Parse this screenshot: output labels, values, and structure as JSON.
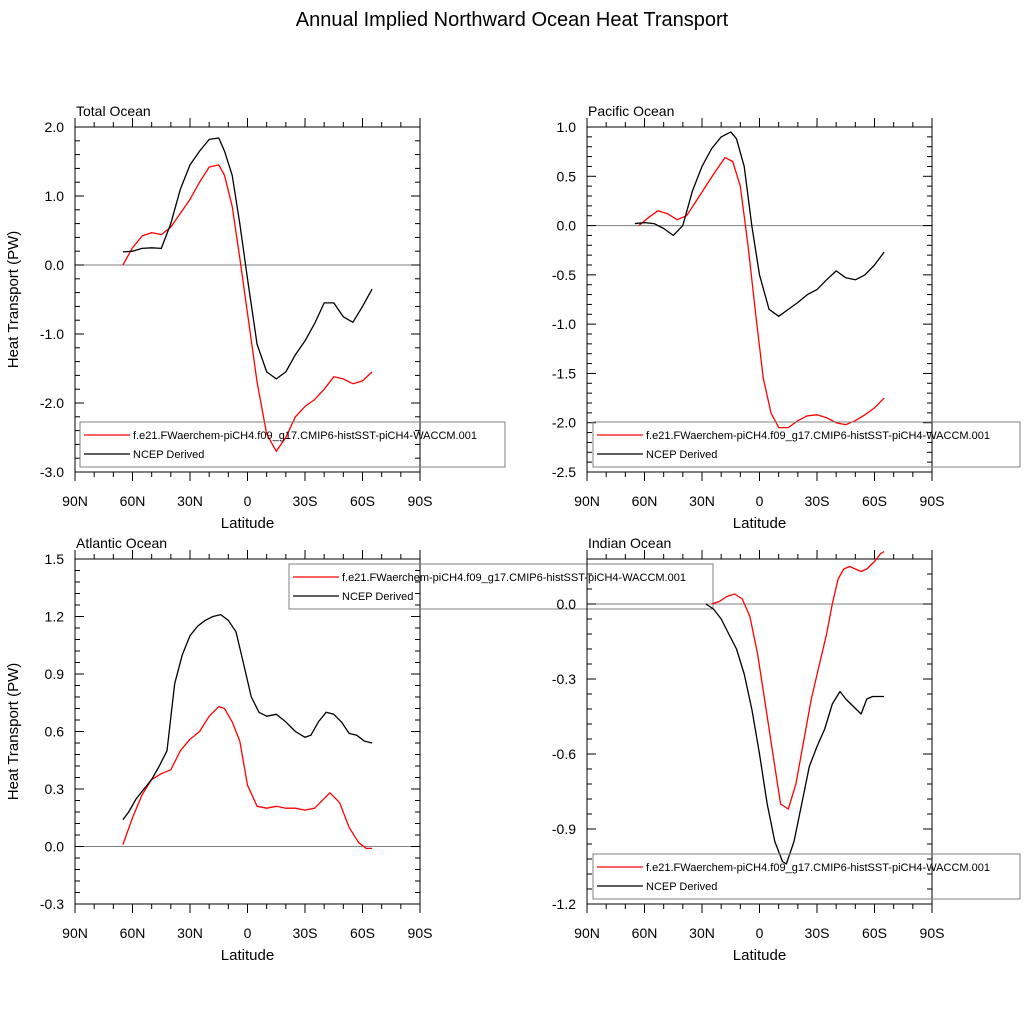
{
  "figure_title": "Annual Implied Northward Ocean Heat Transport",
  "colors": {
    "model": "#ff0000",
    "obs": "#000000",
    "zero_line": "#808080"
  },
  "chart_data": [
    {
      "type": "line",
      "title": "Total Ocean",
      "xlabel": "Latitude",
      "ylabel": "Heat Transport (PW)",
      "xlim": [
        90,
        -90
      ],
      "ylim": [
        -3.0,
        2.0
      ],
      "x_ticks": [
        90,
        60,
        30,
        0,
        -30,
        -60,
        -90
      ],
      "x_tick_labels": [
        "90N",
        "60N",
        "30N",
        "0",
        "30S",
        "60S",
        "90S"
      ],
      "y_ticks": [
        -3.0,
        -2.0,
        -1.0,
        0.0,
        1.0,
        2.0
      ],
      "y_tick_labels": [
        "-3.0",
        "-2.0",
        "-1.0",
        "0.0",
        "1.0",
        "2.0"
      ],
      "legend_position": "lower-right",
      "series": [
        {
          "name": "f.e21.FWaerchem-piCH4.f09_g17.CMIP6-histSST-piCH4-WACCM.001",
          "color": "#ff0000",
          "x": [
            65,
            60,
            55,
            50,
            45,
            40,
            35,
            30,
            25,
            20,
            15,
            12,
            8,
            4,
            0,
            -5,
            -10,
            -15,
            -20,
            -25,
            -30,
            -35,
            -40,
            -45,
            -50,
            -55,
            -60,
            -65
          ],
          "y": [
            0.0,
            0.25,
            0.42,
            0.47,
            0.44,
            0.55,
            0.75,
            0.95,
            1.2,
            1.42,
            1.45,
            1.3,
            0.85,
            0.1,
            -0.7,
            -1.7,
            -2.45,
            -2.7,
            -2.5,
            -2.2,
            -2.05,
            -1.95,
            -1.8,
            -1.62,
            -1.65,
            -1.72,
            -1.68,
            -1.55
          ]
        },
        {
          "name": "NCEP Derived",
          "color": "#000000",
          "x": [
            65,
            60,
            55,
            50,
            45,
            40,
            35,
            30,
            25,
            20,
            15,
            12,
            8,
            4,
            0,
            -5,
            -10,
            -15,
            -20,
            -25,
            -30,
            -35,
            -40,
            -45,
            -50,
            -55,
            -60,
            -65
          ],
          "y": [
            0.19,
            0.2,
            0.24,
            0.25,
            0.24,
            0.6,
            1.1,
            1.45,
            1.65,
            1.82,
            1.84,
            1.65,
            1.3,
            0.6,
            -0.2,
            -1.15,
            -1.55,
            -1.65,
            -1.55,
            -1.3,
            -1.1,
            -0.85,
            -0.55,
            -0.55,
            -0.75,
            -0.83,
            -0.6,
            -0.35
          ]
        }
      ]
    },
    {
      "type": "line",
      "title": "Pacific Ocean",
      "xlabel": "Latitude",
      "ylabel": "",
      "xlim": [
        90,
        -90
      ],
      "ylim": [
        -2.5,
        1.0
      ],
      "x_ticks": [
        90,
        60,
        30,
        0,
        -30,
        -60,
        -90
      ],
      "x_tick_labels": [
        "90N",
        "60N",
        "30N",
        "0",
        "30S",
        "60S",
        "90S"
      ],
      "y_ticks": [
        -2.5,
        -2.0,
        -1.5,
        -1.0,
        -0.5,
        0.0,
        0.5,
        1.0
      ],
      "y_tick_labels": [
        "-2.5",
        "-2.0",
        "-1.5",
        "-1.0",
        "-0.5",
        "0.0",
        "0.5",
        "1.0"
      ],
      "legend_position": "lower-right",
      "series": [
        {
          "name": "f.e21.FWaerchem-piCH4.f09_g17.CMIP6-histSST-piCH4-WACCM.001",
          "color": "#ff0000",
          "x": [
            63,
            58,
            53,
            48,
            43,
            38,
            33,
            28,
            23,
            18,
            14,
            10,
            6,
            2,
            -2,
            -6,
            -10,
            -15,
            -20,
            -25,
            -30,
            -35,
            -40,
            -45,
            -50,
            -55,
            -60,
            -65
          ],
          "y": [
            0.0,
            0.08,
            0.15,
            0.12,
            0.06,
            0.1,
            0.25,
            0.4,
            0.55,
            0.69,
            0.65,
            0.4,
            -0.2,
            -0.9,
            -1.55,
            -1.9,
            -2.05,
            -2.05,
            -1.98,
            -1.93,
            -1.92,
            -1.95,
            -2.0,
            -2.02,
            -1.98,
            -1.92,
            -1.85,
            -1.75
          ]
        },
        {
          "name": "NCEP Derived",
          "color": "#000000",
          "x": [
            65,
            60,
            55,
            50,
            45,
            40,
            35,
            30,
            25,
            20,
            15,
            12,
            8,
            4,
            0,
            -5,
            -10,
            -15,
            -20,
            -25,
            -30,
            -35,
            -40,
            -45,
            -50,
            -55,
            -60,
            -65
          ],
          "y": [
            0.02,
            0.03,
            0.02,
            -0.03,
            -0.1,
            0.0,
            0.35,
            0.6,
            0.78,
            0.9,
            0.95,
            0.88,
            0.6,
            0.0,
            -0.5,
            -0.85,
            -0.92,
            -0.85,
            -0.78,
            -0.7,
            -0.65,
            -0.55,
            -0.46,
            -0.53,
            -0.55,
            -0.5,
            -0.4,
            -0.27
          ]
        }
      ]
    },
    {
      "type": "line",
      "title": "Atlantic Ocean",
      "xlabel": "Latitude",
      "ylabel": "Heat Transport (PW)",
      "xlim": [
        90,
        -90
      ],
      "ylim": [
        -0.3,
        1.5
      ],
      "x_ticks": [
        90,
        60,
        30,
        0,
        -30,
        -60,
        -90
      ],
      "x_tick_labels": [
        "90N",
        "60N",
        "30N",
        "0",
        "30S",
        "60S",
        "90S"
      ],
      "y_ticks": [
        -0.3,
        0.0,
        0.3,
        0.6,
        0.9,
        1.2,
        1.5
      ],
      "y_tick_labels": [
        "-0.3",
        "0.0",
        "0.3",
        "0.6",
        "0.9",
        "1.2",
        "1.5"
      ],
      "legend_position": "top-center",
      "series": [
        {
          "name": "f.e21.FWaerchem-piCH4.f09_g17.CMIP6-histSST-piCH4-WACCM.001",
          "color": "#ff0000",
          "x": [
            65,
            60,
            55,
            50,
            45,
            40,
            35,
            30,
            25,
            20,
            15,
            12,
            8,
            4,
            0,
            -5,
            -10,
            -15,
            -20,
            -25,
            -30,
            -35,
            -40,
            -43,
            -48,
            -53,
            -58,
            -62,
            -65
          ],
          "y": [
            0.01,
            0.15,
            0.27,
            0.35,
            0.38,
            0.4,
            0.5,
            0.56,
            0.6,
            0.68,
            0.73,
            0.72,
            0.65,
            0.55,
            0.32,
            0.21,
            0.2,
            0.21,
            0.2,
            0.2,
            0.19,
            0.2,
            0.25,
            0.28,
            0.23,
            0.1,
            0.02,
            -0.01,
            -0.01
          ]
        },
        {
          "name": "NCEP Derived",
          "color": "#000000",
          "x": [
            65,
            62,
            58,
            54,
            50,
            46,
            42,
            38,
            34,
            30,
            26,
            22,
            18,
            14,
            10,
            6,
            2,
            -2,
            -6,
            -10,
            -15,
            -20,
            -25,
            -30,
            -33,
            -37,
            -41,
            -45,
            -49,
            -53,
            -57,
            -61,
            -65
          ],
          "y": [
            0.14,
            0.18,
            0.25,
            0.3,
            0.35,
            0.42,
            0.5,
            0.85,
            1.0,
            1.1,
            1.15,
            1.18,
            1.2,
            1.21,
            1.18,
            1.12,
            0.95,
            0.78,
            0.7,
            0.68,
            0.69,
            0.65,
            0.6,
            0.57,
            0.58,
            0.65,
            0.7,
            0.69,
            0.65,
            0.59,
            0.58,
            0.55,
            0.54
          ]
        }
      ]
    },
    {
      "type": "line",
      "title": "Indian Ocean",
      "xlabel": "Latitude",
      "ylabel": "",
      "xlim": [
        90,
        -90
      ],
      "ylim": [
        -1.2,
        0.18
      ],
      "x_ticks": [
        90,
        60,
        30,
        0,
        -30,
        -60,
        -90
      ],
      "x_tick_labels": [
        "90N",
        "60N",
        "30N",
        "0",
        "30S",
        "60S",
        "90S"
      ],
      "y_ticks": [
        -1.2,
        -0.9,
        -0.6,
        -0.3,
        0.0
      ],
      "y_tick_labels": [
        "-1.2",
        "-0.9",
        "-0.6",
        "-0.3",
        "0.0"
      ],
      "legend_position": "lower-right",
      "series": [
        {
          "name": "f.e21.FWaerchem-piCH4.f09_g17.CMIP6-histSST-piCH4-WACCM.001",
          "color": "#ff0000",
          "x": [
            25,
            21,
            17,
            13,
            9,
            5,
            1,
            -3,
            -7,
            -11,
            -15,
            -19,
            -23,
            -27,
            -31,
            -35,
            -38,
            -41,
            -44,
            -47,
            -50,
            -53,
            -56,
            -60,
            -63,
            -65
          ],
          "y": [
            0.0,
            0.01,
            0.03,
            0.04,
            0.02,
            -0.05,
            -0.2,
            -0.4,
            -0.6,
            -0.8,
            -0.82,
            -0.72,
            -0.55,
            -0.38,
            -0.25,
            -0.12,
            0.0,
            0.1,
            0.14,
            0.15,
            0.14,
            0.13,
            0.14,
            0.17,
            0.2,
            0.21
          ]
        },
        {
          "name": "NCEP Derived",
          "color": "#000000",
          "x": [
            28,
            24,
            20,
            16,
            12,
            8,
            4,
            0,
            -4,
            -8,
            -12,
            -14,
            -18,
            -22,
            -26,
            -30,
            -34,
            -38,
            -42,
            -45,
            -49,
            -53,
            -56,
            -59,
            -63,
            -65
          ],
          "y": [
            0.0,
            -0.02,
            -0.06,
            -0.12,
            -0.18,
            -0.28,
            -0.42,
            -0.6,
            -0.8,
            -0.95,
            -1.03,
            -1.04,
            -0.95,
            -0.8,
            -0.65,
            -0.57,
            -0.5,
            -0.4,
            -0.35,
            -0.38,
            -0.41,
            -0.44,
            -0.38,
            -0.37,
            -0.37,
            -0.37
          ]
        }
      ]
    }
  ]
}
